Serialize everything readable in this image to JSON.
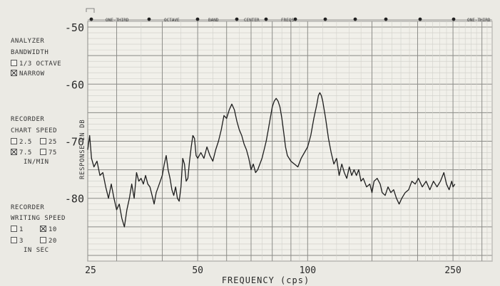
{
  "side_panel": {
    "analyzer_title": [
      "ANALYZER",
      "BANDWIDTH"
    ],
    "analyzer_options": [
      {
        "label": "1/3 OCTAVE",
        "checked": false
      },
      {
        "label": "NARROW",
        "checked": true
      }
    ],
    "chart_speed_title": [
      "RECORDER",
      "CHART SPEED"
    ],
    "chart_speed_options": [
      {
        "label": "2.5",
        "checked": false
      },
      {
        "label": "25",
        "checked": false
      },
      {
        "label": "7.5",
        "checked": true
      },
      {
        "label": "75",
        "checked": false
      }
    ],
    "chart_speed_unit": "IN/MIN",
    "writing_speed_title": [
      "RECORDER",
      "WRITING SPEED"
    ],
    "writing_speed_options": [
      {
        "label": "1",
        "checked": false
      },
      {
        "label": "10",
        "checked": true
      },
      {
        "label": "3",
        "checked": false
      },
      {
        "label": "20",
        "checked": false
      }
    ],
    "writing_speed_unit": "IN SEC"
  },
  "header_labels": [
    "ONE-THIRD",
    "OCTAVE",
    "BAND",
    "CENTER",
    "FREQS",
    "ONE-THIRD"
  ],
  "chart_data": {
    "type": "line",
    "xlabel": "FREQUENCY (cps)",
    "ylabel": "RESPONSE IN DB",
    "x_scale": "log",
    "xlim": [
      25,
      320
    ],
    "ylim": [
      -91,
      -49
    ],
    "y_ticks": [
      -50,
      -60,
      -70,
      -80
    ],
    "x_ticks": [
      25,
      50,
      100,
      250
    ],
    "grid": true,
    "series": [
      {
        "color": "#1e1e1e",
        "points": [
          [
            25,
            -71.5
          ],
          [
            25.3,
            -69
          ],
          [
            25.6,
            -73
          ],
          [
            26,
            -74.5
          ],
          [
            26.5,
            -73.5
          ],
          [
            27,
            -76
          ],
          [
            27.5,
            -75.5
          ],
          [
            28,
            -78
          ],
          [
            28.5,
            -80
          ],
          [
            29,
            -77.5
          ],
          [
            29.5,
            -80
          ],
          [
            30,
            -82
          ],
          [
            30.5,
            -81
          ],
          [
            31,
            -83.5
          ],
          [
            31.5,
            -85
          ],
          [
            32,
            -82
          ],
          [
            32.5,
            -80
          ],
          [
            33,
            -77.5
          ],
          [
            33.5,
            -80
          ],
          [
            34,
            -75.5
          ],
          [
            34.5,
            -77
          ],
          [
            35,
            -76.5
          ],
          [
            35.5,
            -77.5
          ],
          [
            36,
            -76
          ],
          [
            36.5,
            -77.5
          ],
          [
            37,
            -78
          ],
          [
            37.5,
            -79.5
          ],
          [
            38,
            -81
          ],
          [
            38.5,
            -79
          ],
          [
            39,
            -78
          ],
          [
            39.5,
            -77
          ],
          [
            40,
            -76
          ],
          [
            40.5,
            -74
          ],
          [
            41,
            -72.5
          ],
          [
            41.5,
            -75
          ],
          [
            42,
            -76.5
          ],
          [
            42.5,
            -78.5
          ],
          [
            43,
            -79.5
          ],
          [
            43.5,
            -78
          ],
          [
            44,
            -80
          ],
          [
            44.5,
            -80.5
          ],
          [
            45,
            -78
          ],
          [
            45.5,
            -73
          ],
          [
            46,
            -74
          ],
          [
            46.5,
            -77
          ],
          [
            47,
            -76.5
          ],
          [
            47.5,
            -73.5
          ],
          [
            48,
            -71
          ],
          [
            48.5,
            -69
          ],
          [
            49,
            -69.5
          ],
          [
            49.5,
            -72.5
          ],
          [
            50,
            -73
          ],
          [
            51,
            -72
          ],
          [
            52,
            -73
          ],
          [
            53,
            -71
          ],
          [
            54,
            -72.5
          ],
          [
            55,
            -73.5
          ],
          [
            56,
            -71.5
          ],
          [
            57,
            -70
          ],
          [
            58,
            -68
          ],
          [
            59,
            -65.5
          ],
          [
            60,
            -66
          ],
          [
            61,
            -64.5
          ],
          [
            62,
            -63.5
          ],
          [
            63,
            -64.5
          ],
          [
            64,
            -66.5
          ],
          [
            65,
            -68
          ],
          [
            66,
            -69
          ],
          [
            67,
            -70.5
          ],
          [
            68,
            -71.5
          ],
          [
            69,
            -73
          ],
          [
            70,
            -75
          ],
          [
            71,
            -74
          ],
          [
            72,
            -75.5
          ],
          [
            73,
            -75
          ],
          [
            74,
            -74
          ],
          [
            75,
            -73
          ],
          [
            76,
            -71.5
          ],
          [
            77,
            -70
          ],
          [
            78,
            -68
          ],
          [
            79,
            -66
          ],
          [
            80,
            -64
          ],
          [
            81,
            -63
          ],
          [
            82,
            -62.5
          ],
          [
            83,
            -63
          ],
          [
            84,
            -64
          ],
          [
            85,
            -66
          ],
          [
            86,
            -68.5
          ],
          [
            87,
            -71
          ],
          [
            88,
            -72.5
          ],
          [
            90,
            -73.5
          ],
          [
            92,
            -74
          ],
          [
            94,
            -74.5
          ],
          [
            96,
            -73
          ],
          [
            98,
            -72
          ],
          [
            100,
            -71
          ],
          [
            102,
            -69
          ],
          [
            104,
            -66
          ],
          [
            106,
            -63.5
          ],
          [
            107,
            -62
          ],
          [
            108,
            -61.5
          ],
          [
            109,
            -62
          ],
          [
            110,
            -63
          ],
          [
            112,
            -66
          ],
          [
            114,
            -69.5
          ],
          [
            116,
            -72
          ],
          [
            118,
            -74
          ],
          [
            120,
            -73
          ],
          [
            122,
            -76
          ],
          [
            124,
            -74
          ],
          [
            126,
            -75.5
          ],
          [
            128,
            -76.5
          ],
          [
            130,
            -74.5
          ],
          [
            132,
            -76
          ],
          [
            134,
            -75
          ],
          [
            136,
            -76
          ],
          [
            138,
            -75
          ],
          [
            140,
            -77
          ],
          [
            142,
            -76.5
          ],
          [
            145,
            -78
          ],
          [
            148,
            -77.5
          ],
          [
            150,
            -79
          ],
          [
            152,
            -77
          ],
          [
            155,
            -76.5
          ],
          [
            158,
            -77.5
          ],
          [
            160,
            -79
          ],
          [
            163,
            -79.5
          ],
          [
            166,
            -78
          ],
          [
            169,
            -79
          ],
          [
            172,
            -78.5
          ],
          [
            175,
            -80
          ],
          [
            178,
            -81
          ],
          [
            181,
            -80
          ],
          [
            185,
            -79
          ],
          [
            189,
            -78.5
          ],
          [
            193,
            -77
          ],
          [
            197,
            -77.5
          ],
          [
            201,
            -76.5
          ],
          [
            206,
            -78
          ],
          [
            211,
            -77
          ],
          [
            216,
            -78.5
          ],
          [
            221,
            -77
          ],
          [
            226,
            -78
          ],
          [
            231,
            -77
          ],
          [
            236,
            -75.5
          ],
          [
            240,
            -77.5
          ],
          [
            244,
            -78.5
          ],
          [
            248,
            -77
          ],
          [
            250,
            -78
          ],
          [
            253,
            -77.5
          ]
        ]
      }
    ]
  }
}
